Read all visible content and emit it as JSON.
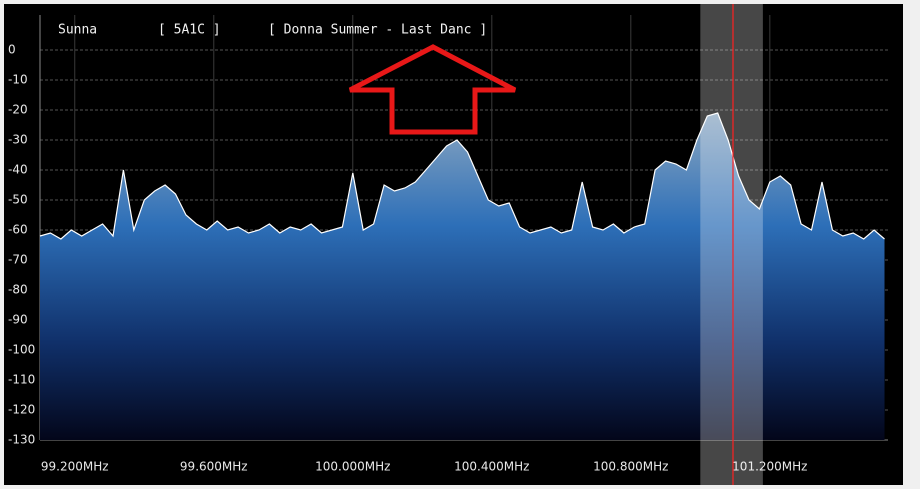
{
  "header": {
    "station": "Sunna",
    "pi": "[ 5A1C ]",
    "radiotext": "[ Donna Summer - Last Danc ]"
  },
  "chart_data": {
    "type": "area",
    "x": [
      99.1,
      99.13,
      99.16,
      99.19,
      99.22,
      99.25,
      99.28,
      99.31,
      99.34,
      99.37,
      99.4,
      99.43,
      99.46,
      99.49,
      99.52,
      99.55,
      99.58,
      99.61,
      99.64,
      99.67,
      99.7,
      99.73,
      99.76,
      99.79,
      99.82,
      99.85,
      99.88,
      99.91,
      99.94,
      99.97,
      100.0,
      100.03,
      100.06,
      100.09,
      100.12,
      100.15,
      100.18,
      100.21,
      100.24,
      100.27,
      100.3,
      100.33,
      100.36,
      100.39,
      100.42,
      100.45,
      100.48,
      100.51,
      100.54,
      100.57,
      100.6,
      100.63,
      100.66,
      100.69,
      100.72,
      100.75,
      100.78,
      100.81,
      100.84,
      100.87,
      100.9,
      100.93,
      100.96,
      100.99,
      101.02,
      101.05,
      101.08,
      101.11,
      101.14,
      101.17,
      101.2,
      101.23,
      101.26,
      101.29,
      101.32,
      101.35,
      101.38,
      101.41,
      101.44,
      101.47,
      101.5,
      101.53
    ],
    "values": [
      -62,
      -61,
      -63,
      -60,
      -62,
      -60,
      -58,
      -62,
      -40,
      -60,
      -50,
      -47,
      -45,
      -48,
      -55,
      -58,
      -60,
      -57,
      -60,
      -59,
      -61,
      -60,
      -58,
      -61,
      -59,
      -60,
      -58,
      -61,
      -60,
      -59,
      -41,
      -60,
      -58,
      -45,
      -47,
      -46,
      -44,
      -40,
      -36,
      -32,
      -30,
      -34,
      -42,
      -50,
      -52,
      -51,
      -59,
      -61,
      -60,
      -59,
      -61,
      -60,
      -44,
      -59,
      -60,
      -58,
      -61,
      -59,
      -58,
      -40,
      -37,
      -38,
      -40,
      -30,
      -22,
      -21,
      -30,
      -42,
      -50,
      -53,
      -44,
      -42,
      -45,
      -58,
      -60,
      -44,
      -60,
      -62,
      -61,
      -63,
      -60,
      -63
    ],
    "color": "#ffffff",
    "xlim": [
      99.1,
      101.54
    ],
    "ylim": [
      -130,
      0
    ],
    "yticks": [
      0,
      -10,
      -20,
      -30,
      -40,
      -50,
      -60,
      -70,
      -80,
      -90,
      -100,
      -110,
      -120,
      -130
    ],
    "xticks": [
      {
        "value": 99.2,
        "label": "99.200MHz"
      },
      {
        "value": 99.6,
        "label": "99.600MHz"
      },
      {
        "value": 100.0,
        "label": "100.000MHz"
      },
      {
        "value": 100.4,
        "label": "100.400MHz"
      },
      {
        "value": 100.8,
        "label": "100.800MHz"
      },
      {
        "value": 101.2,
        "label": "101.200MHz"
      }
    ],
    "grid": true,
    "selected_frequency": 101.094,
    "selected_band": [
      101.0,
      101.18
    ],
    "selection_color": "#ff2020"
  }
}
